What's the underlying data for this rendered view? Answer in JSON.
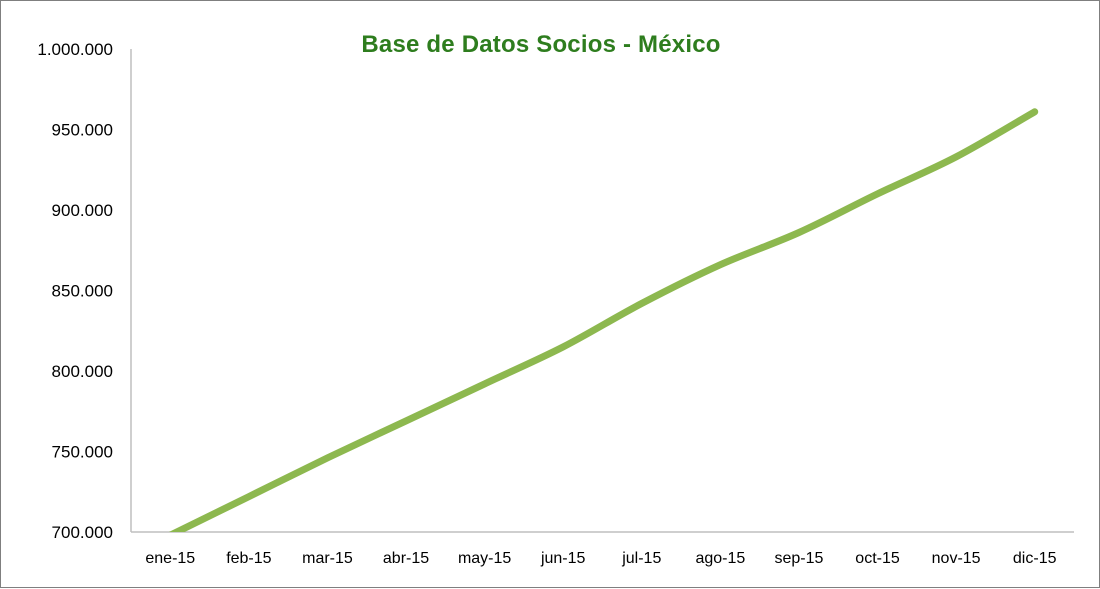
{
  "chart_data": {
    "type": "line",
    "title": "Base de Datos Socios - México",
    "xlabel": "",
    "ylabel": "",
    "categories": [
      "ene-15",
      "feb-15",
      "mar-15",
      "abr-15",
      "may-15",
      "jun-15",
      "jul-15",
      "ago-15",
      "sep-15",
      "oct-15",
      "nov-15",
      "dic-15"
    ],
    "series": [
      {
        "values": [
          698000,
          722000,
          746000,
          769000,
          792000,
          815000,
          842000,
          866000,
          886000,
          910000,
          933000,
          961000
        ]
      }
    ],
    "ylim": [
      700000,
      1000000
    ],
    "yticks": [
      700000,
      750000,
      800000,
      850000,
      900000,
      950000,
      1000000
    ],
    "ytick_labels": [
      "700.000",
      "750.000",
      "800.000",
      "850.000",
      "900.000",
      "950.000",
      "1.000.000"
    ],
    "grid": false,
    "legend": "none",
    "colors": {
      "line": "#8db84f",
      "title": "#2e7d1e",
      "axis": "#bfbfbf"
    }
  }
}
